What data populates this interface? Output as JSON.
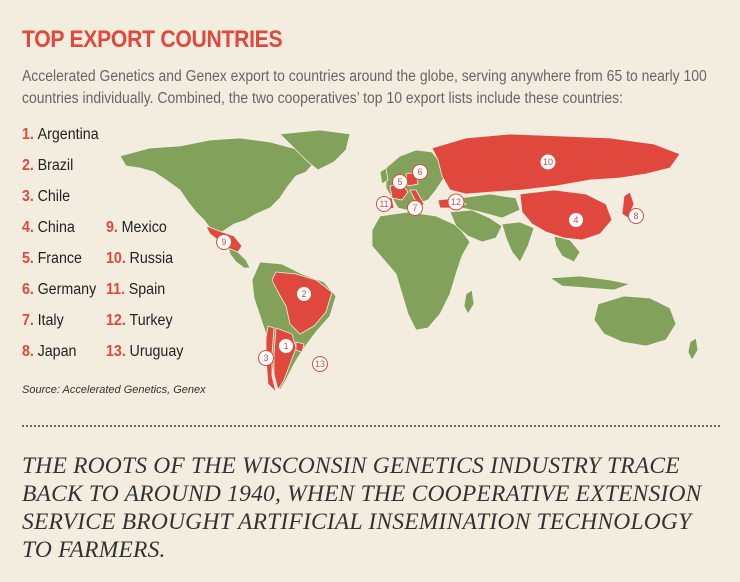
{
  "title": "TOP EXPORT COUNTRIES",
  "intro": "Accelerated Genetics and Genex export to countries around the globe, serving anywhere from 65 to nearly 100 countries individually. Combined, the two cooperatives’ top 10 export lists include these countries:",
  "countries": [
    {
      "num": "1.",
      "name": "Argentina"
    },
    {
      "num": "2.",
      "name": "Brazil"
    },
    {
      "num": "3.",
      "name": "Chile"
    },
    {
      "num": "4.",
      "name": "China"
    },
    {
      "num": "5.",
      "name": "France"
    },
    {
      "num": "6.",
      "name": "Germany"
    },
    {
      "num": "7.",
      "name": "Italy"
    },
    {
      "num": "8.",
      "name": "Japan"
    },
    {
      "num": "9.",
      "name": "Mexico"
    },
    {
      "num": "10.",
      "name": "Russia"
    },
    {
      "num": "11.",
      "name": "Spain"
    },
    {
      "num": "12.",
      "name": "Turkey"
    },
    {
      "num": "13.",
      "name": "Uruguay"
    }
  ],
  "map_markers": [
    "1",
    "2",
    "3",
    "4",
    "5",
    "6",
    "7",
    "8",
    "9",
    "10",
    "11",
    "12",
    "13"
  ],
  "source": "Source: Accelerated Genetics, Genex",
  "quote": "THE ROOTS OF THE WISCONSIN GENETICS INDUSTRY TRACE BACK TO AROUND 1940, WHEN THE COOPERATIVE EXTENSION SERVICE BROUGHT ARTIFICIAL INSEMINATION TECHNOLOGY TO FARMERS.",
  "colors": {
    "highlight": "#e0483e",
    "land": "#82a15a",
    "background": "#f3ede0"
  }
}
